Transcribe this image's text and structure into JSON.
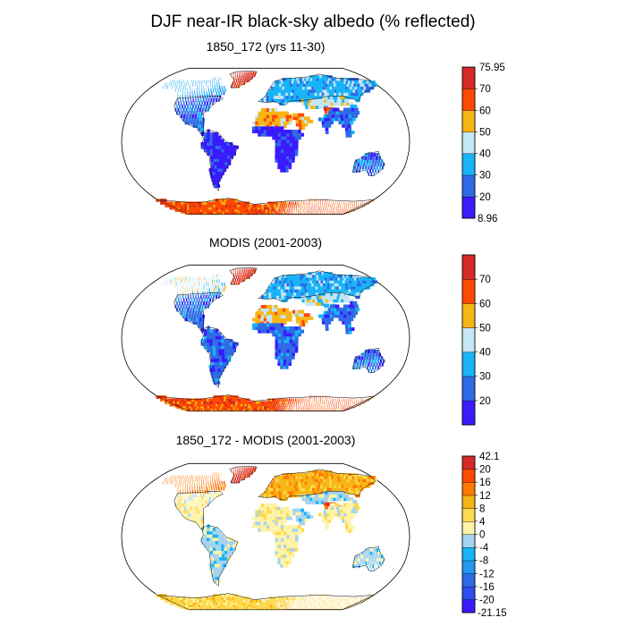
{
  "figure_title": "DJF near-IR black-sky albedo (% reflected)",
  "colors": {
    "land_outline": "#000000",
    "ocean": "#ffffff"
  },
  "chart_data": [
    {
      "type": "heatmap",
      "projection": "Robinson",
      "title": "1850_172 (yrs 11-30)",
      "colorbar": {
        "min_label": "8.96",
        "max_label": "75.95",
        "tick_labels": [
          "70",
          "60",
          "50",
          "40",
          "30",
          "20"
        ],
        "colors": [
          "#3a1aff",
          "#2f6be6",
          "#19b4f7",
          "#c4e6f5",
          "#f7b516",
          "#ff4a00",
          "#d62a26"
        ]
      },
      "regions": [
        {
          "name": "Greenland",
          "category": 6
        },
        {
          "name": "North America",
          "category": 1
        },
        {
          "name": "Boreal North America",
          "category": 2
        },
        {
          "name": "South America",
          "category": 0
        },
        {
          "name": "Europe / Siberia",
          "category": 2
        },
        {
          "name": "Sahara",
          "category": 4
        },
        {
          "name": "Arabia",
          "category": 4
        },
        {
          "name": "Central Asia",
          "category": 3
        },
        {
          "name": "Tibetan Plateau",
          "category": 5
        },
        {
          "name": "Tropical Africa",
          "category": 0
        },
        {
          "name": "South Asia",
          "category": 1
        },
        {
          "name": "Australia",
          "category": 1
        },
        {
          "name": "Antarctica",
          "category": 5
        }
      ]
    },
    {
      "type": "heatmap",
      "projection": "Robinson",
      "title": "MODIS (2001-2003)",
      "colorbar": {
        "min_label": "",
        "max_label": "",
        "tick_labels": [
          "70",
          "60",
          "50",
          "40",
          "30",
          "20"
        ],
        "colors": [
          "#3a1aff",
          "#2f6be6",
          "#19b4f7",
          "#c4e6f5",
          "#f7b516",
          "#ff4a00",
          "#d62a26"
        ]
      },
      "regions": [
        {
          "name": "Greenland",
          "category": 6
        },
        {
          "name": "North America",
          "category": 1
        },
        {
          "name": "Boreal North America",
          "category": 3
        },
        {
          "name": "South America",
          "category": 1
        },
        {
          "name": "Europe / Siberia",
          "category": 2
        },
        {
          "name": "Sahara",
          "category": 4
        },
        {
          "name": "Arabia",
          "category": 4
        },
        {
          "name": "Central Asia",
          "category": 3
        },
        {
          "name": "Tibetan Plateau",
          "category": 3
        },
        {
          "name": "Tropical Africa",
          "category": 1
        },
        {
          "name": "South Asia",
          "category": 1
        },
        {
          "name": "Australia",
          "category": 1
        },
        {
          "name": "Antarctica",
          "category": 5
        }
      ]
    },
    {
      "type": "heatmap",
      "projection": "Robinson",
      "title": "1850_172 - MODIS (2001-2003)",
      "colorbar": {
        "min_label": "-21.15",
        "max_label": "42.1",
        "tick_labels": [
          "20",
          "16",
          "12",
          "8",
          "4",
          "0",
          "-4",
          "-8",
          "-12",
          "-16",
          "-20"
        ],
        "colors": [
          "#3a1aff",
          "#2f4cf0",
          "#2f6be6",
          "#2396f0",
          "#19b4f7",
          "#a5d4f0",
          "#fff3a8",
          "#ffd94d",
          "#f7b516",
          "#ff7a00",
          "#ff4a00",
          "#d62a26"
        ]
      },
      "regions": [
        {
          "name": "Greenland",
          "category": 11
        },
        {
          "name": "North America",
          "category": 6
        },
        {
          "name": "Boreal North America",
          "category": 9
        },
        {
          "name": "South America",
          "category": 5
        },
        {
          "name": "Europe / Siberia",
          "category": 8
        },
        {
          "name": "Sahara",
          "category": 6
        },
        {
          "name": "Arabia",
          "category": 5
        },
        {
          "name": "Central Asia",
          "category": 5
        },
        {
          "name": "Tibetan Plateau",
          "category": 10
        },
        {
          "name": "Tropical Africa",
          "category": 6
        },
        {
          "name": "South Asia",
          "category": 6
        },
        {
          "name": "Australia",
          "category": 5
        },
        {
          "name": "Antarctica",
          "category": 7
        }
      ]
    }
  ]
}
